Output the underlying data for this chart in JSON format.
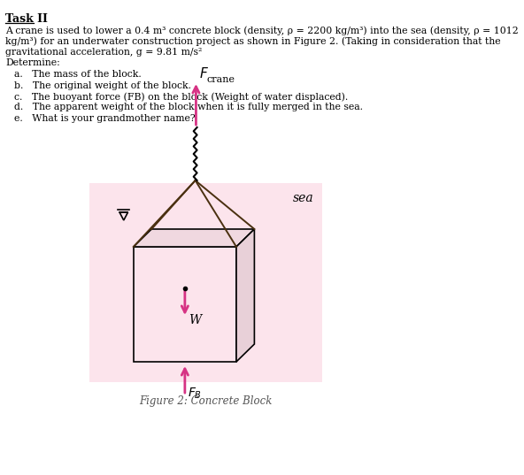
{
  "title": "Task II",
  "determine_label": "Determine:",
  "para_lines": [
    "A crane is used to lower a 0.4 m³ concrete block (density, ρ = 2200 kg/m³) into the sea (density, ρ = 1012",
    "kg/m³) for an underwater construction project as shown in Figure 2. (Taking in consideration that the",
    "gravitational acceleration, g = 9.81 m/s²"
  ],
  "items": [
    "a.   The mass of the block.",
    "b.   The original weight of the block.",
    "c.   The buoyant force (FB) on the block (Weight of water displaced).",
    "d.   The apparent weight of the block when it is fully merged in the sea.",
    "e.   What is your grandmother name?"
  ],
  "figure_caption": "Figure 2: Concrete Block",
  "sea_label": "sea",
  "sea_bg_color": "#fce4ec",
  "arrow_color": "#d63384",
  "rope_color": "#4a3010",
  "text_color": "#000000",
  "box_face_front": "#fce4ec",
  "box_face_top": "#f0d8e0",
  "box_face_right": "#e8d0d8",
  "box_edge_color": "#000000"
}
